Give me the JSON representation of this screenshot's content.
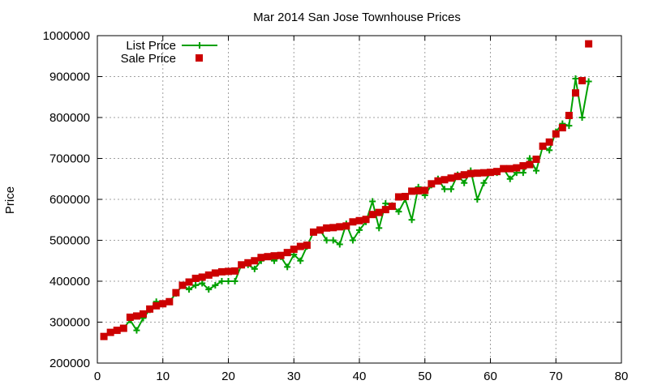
{
  "chart_data": {
    "type": "line",
    "title": "Mar 2014 San Jose Townhouse Prices",
    "xlabel": "",
    "ylabel": "Price",
    "xlim": [
      0,
      80
    ],
    "ylim": [
      200000,
      1000000
    ],
    "xticks": [
      "0",
      "10",
      "20",
      "30",
      "40",
      "50",
      "60",
      "70",
      "80"
    ],
    "yticks": [
      "200000",
      "300000",
      "400000",
      "500000",
      "600000",
      "700000",
      "800000",
      "900000",
      "1000000"
    ],
    "grid": true,
    "legend_position": "top-left",
    "x": [
      1,
      2,
      3,
      4,
      5,
      6,
      7,
      8,
      9,
      10,
      11,
      12,
      13,
      14,
      15,
      16,
      17,
      18,
      19,
      20,
      21,
      22,
      23,
      24,
      25,
      26,
      27,
      28,
      29,
      30,
      31,
      32,
      33,
      34,
      35,
      36,
      37,
      38,
      39,
      40,
      41,
      42,
      43,
      44,
      45,
      46,
      47,
      48,
      49,
      50,
      51,
      52,
      53,
      54,
      55,
      56,
      57,
      58,
      59,
      60,
      61,
      62,
      63,
      64,
      65,
      66,
      67,
      68,
      69,
      70,
      71,
      72,
      73,
      74,
      75
    ],
    "series": [
      {
        "name": "List Price",
        "style": "line+plus",
        "color": "#00a000",
        "values": [
          265000,
          275000,
          280000,
          285000,
          305000,
          280000,
          310000,
          330000,
          350000,
          345000,
          350000,
          370000,
          390000,
          380000,
          390000,
          395000,
          380000,
          390000,
          400000,
          400000,
          400000,
          440000,
          440000,
          430000,
          450000,
          460000,
          450000,
          460000,
          435000,
          465000,
          450000,
          485000,
          520000,
          525000,
          500000,
          500000,
          490000,
          540000,
          500000,
          525000,
          545000,
          595000,
          530000,
          590000,
          585000,
          570000,
          600000,
          550000,
          630000,
          610000,
          635000,
          650000,
          625000,
          625000,
          660000,
          640000,
          670000,
          600000,
          640000,
          665000,
          665000,
          675000,
          650000,
          665000,
          665000,
          700000,
          670000,
          730000,
          720000,
          765000,
          785000,
          780000,
          895000,
          800000,
          888000
        ]
      },
      {
        "name": "Sale Price",
        "style": "points-square",
        "color": "#cc0000",
        "values": [
          265000,
          275000,
          280000,
          285000,
          312000,
          315000,
          320000,
          332000,
          340000,
          345000,
          350000,
          372000,
          390000,
          398000,
          407000,
          410000,
          415000,
          420000,
          423000,
          424000,
          425000,
          440000,
          445000,
          450000,
          458000,
          460000,
          462000,
          463000,
          470000,
          478000,
          485000,
          488000,
          520000,
          525000,
          530000,
          531000,
          533000,
          535000,
          545000,
          548000,
          551000,
          563000,
          568000,
          575000,
          583000,
          606000,
          607000,
          620000,
          621000,
          622000,
          638000,
          645000,
          648000,
          652000,
          656000,
          660000,
          663000,
          664000,
          665000,
          666000,
          668000,
          675000,
          675000,
          677000,
          682000,
          685000,
          698000,
          730000,
          740000,
          760000,
          775000,
          805000,
          860000,
          890000,
          980000
        ]
      }
    ]
  }
}
